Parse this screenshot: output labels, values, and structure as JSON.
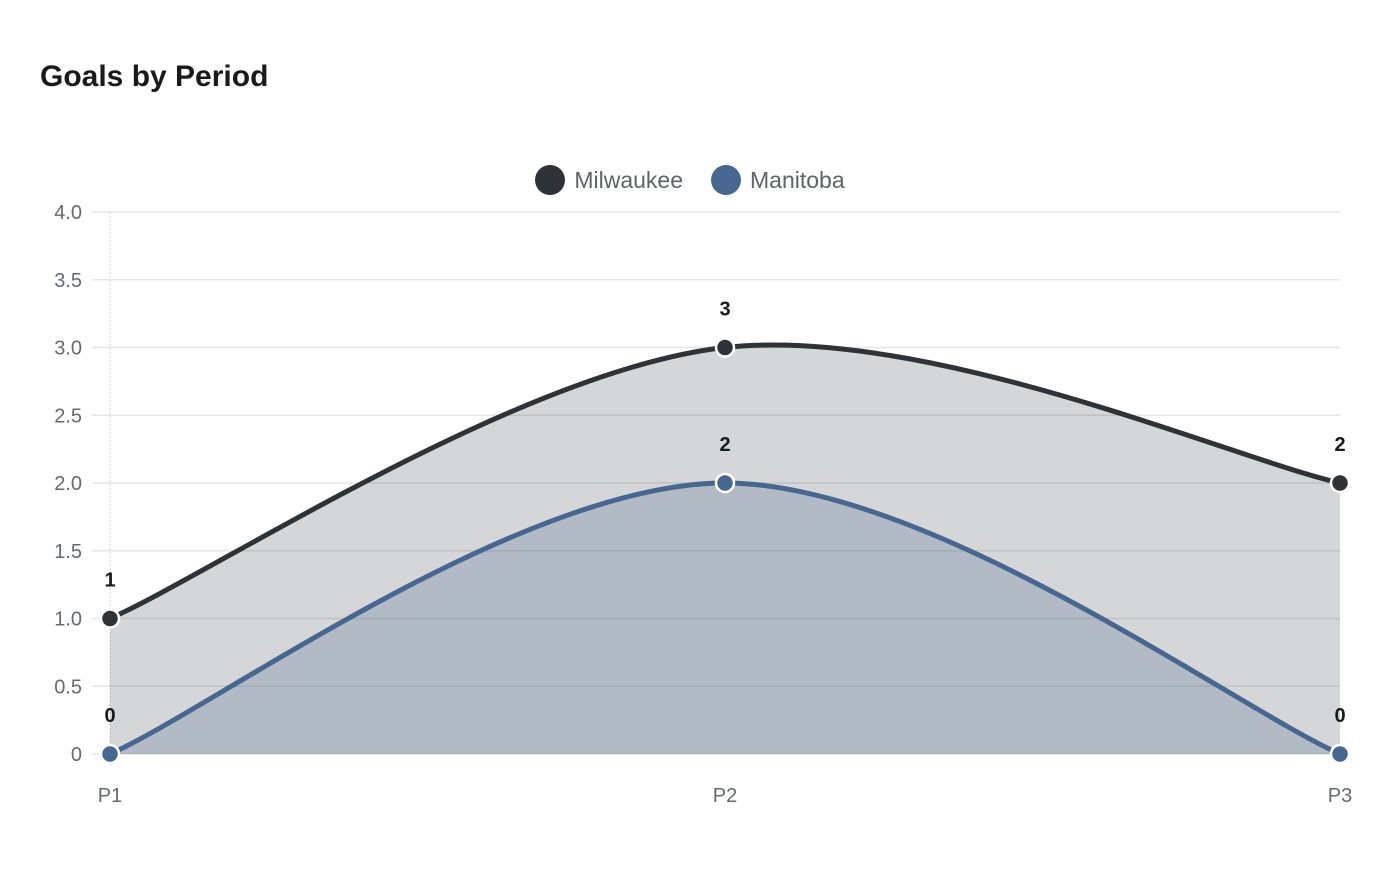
{
  "title": "Goals by Period",
  "legend": [
    {
      "label": "Milwaukee",
      "color": "#2e3338"
    },
    {
      "label": "Manitoba",
      "color": "#476791"
    }
  ],
  "chart_data": {
    "type": "area",
    "title": "Goals by Period",
    "categories": [
      "P1",
      "P2",
      "P3"
    ],
    "series": [
      {
        "name": "Milwaukee",
        "values": [
          1,
          3,
          2
        ],
        "color": "#2e3338"
      },
      {
        "name": "Manitoba",
        "values": [
          0,
          2,
          0
        ],
        "color": "#476791"
      }
    ],
    "xlabel": "",
    "ylabel": "",
    "ylim": [
      0,
      4.0
    ],
    "yticks": [
      "0",
      "0.5",
      "1.0",
      "1.5",
      "2.0",
      "2.5",
      "3.0",
      "3.5",
      "4.0"
    ],
    "grid": true,
    "legend_position": "top",
    "smooth": true,
    "data_labels": true
  }
}
